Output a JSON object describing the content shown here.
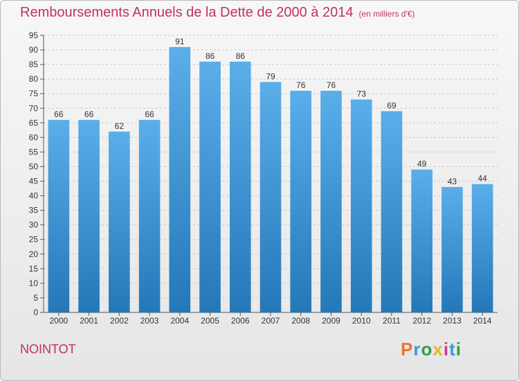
{
  "header": {
    "title": "Remboursements Annuels de la Dette de 2000 à 2014",
    "unit": "(en milliers d'€)"
  },
  "footer": {
    "place": "NOINTOT",
    "brand": "Proxiti",
    "brand_colors": [
      "#e8762d",
      "#3a9ad9",
      "#2d9e4f",
      "#e0b92b",
      "#d2398f",
      "#3a9ad9",
      "#2d9e4f"
    ]
  },
  "colors": {
    "title": "#c1306a",
    "bar_light": "#5aaeea",
    "bar_dark": "#2478b8"
  },
  "chart_data": {
    "type": "bar",
    "title": "Remboursements Annuels de la Dette de 2000 à 2014",
    "categories": [
      "2000",
      "2001",
      "2002",
      "2003",
      "2004",
      "2005",
      "2006",
      "2007",
      "2008",
      "2009",
      "2010",
      "2011",
      "2012",
      "2013",
      "2014"
    ],
    "values": [
      66,
      66,
      62,
      66,
      91,
      86,
      86,
      79,
      76,
      76,
      73,
      69,
      49,
      43,
      44
    ],
    "ylim": [
      0,
      95
    ],
    "yticks": [
      0,
      5,
      10,
      15,
      20,
      25,
      30,
      35,
      40,
      45,
      50,
      55,
      60,
      65,
      70,
      75,
      80,
      85,
      90,
      95
    ],
    "grid": true,
    "legend": "none"
  }
}
